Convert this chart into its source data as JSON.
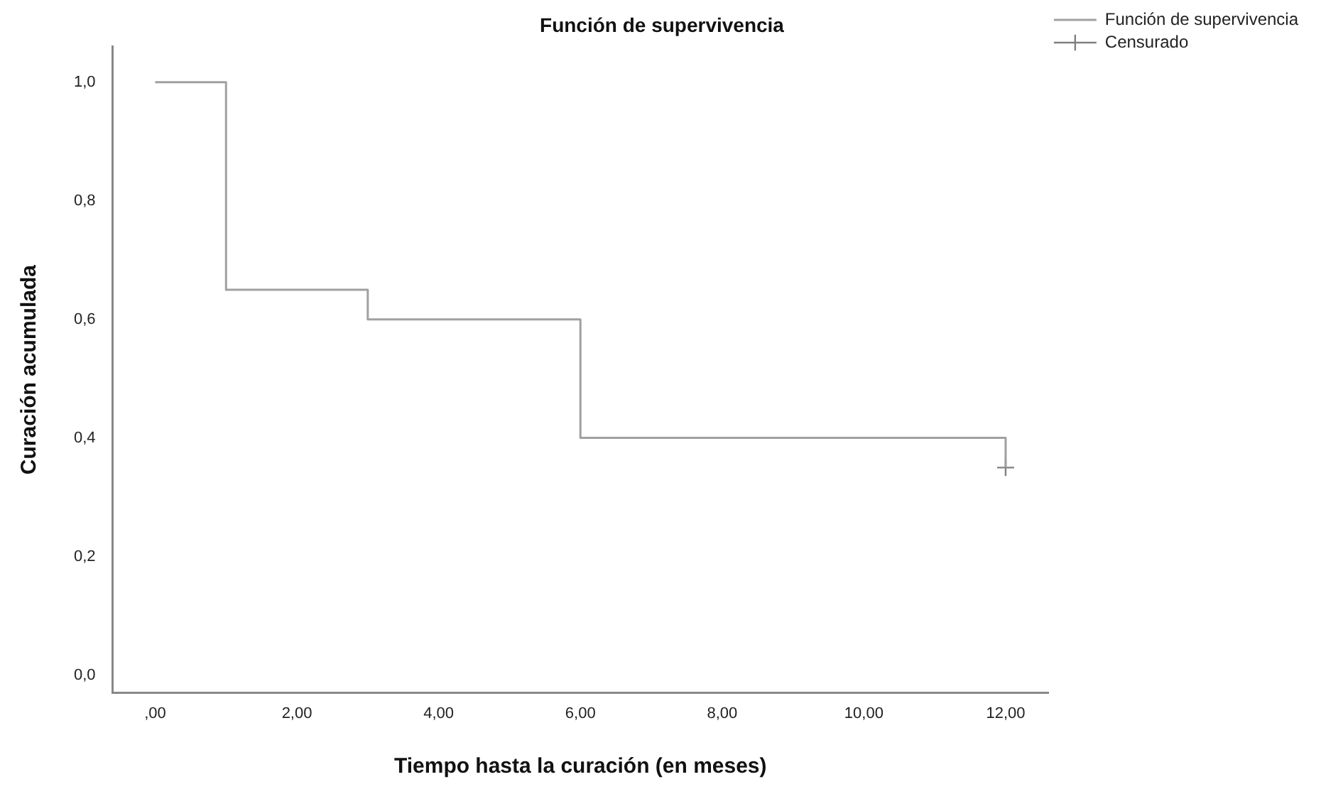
{
  "chart_data": {
    "type": "step",
    "title": "Función de supervivencia",
    "xlabel": "Tiempo hasta la curación (en meses)",
    "ylabel": "Curación acumulada",
    "xlim": [
      -0.6,
      12.6
    ],
    "ylim": [
      -0.03,
      1.06
    ],
    "xticks": [
      {
        "value": 0,
        "label": ",00"
      },
      {
        "value": 2,
        "label": "2,00"
      },
      {
        "value": 4,
        "label": "4,00"
      },
      {
        "value": 6,
        "label": "6,00"
      },
      {
        "value": 8,
        "label": "8,00"
      },
      {
        "value": 10,
        "label": "10,00"
      },
      {
        "value": 12,
        "label": "12,00"
      }
    ],
    "yticks": [
      {
        "value": 0,
        "label": "0,0"
      },
      {
        "value": 0.2,
        "label": "0,2"
      },
      {
        "value": 0.4,
        "label": "0,4"
      },
      {
        "value": 0.6,
        "label": "0,6"
      },
      {
        "value": 0.8,
        "label": "0,8"
      },
      {
        "value": 1,
        "label": "1,0"
      }
    ],
    "grid": false,
    "legend": "top right",
    "series": [
      {
        "name": "Función de supervivencia",
        "type": "step",
        "color": "#a0a0a0",
        "x": [
          0,
          1,
          3,
          6,
          12
        ],
        "values": [
          1,
          0.65,
          0.6,
          0.4,
          0.35
        ],
        "marker": "none"
      },
      {
        "name": "Censurado",
        "type": "scatter",
        "color": "#808080",
        "x": [
          12
        ],
        "values": [
          0.35
        ],
        "marker": "cross"
      }
    ]
  }
}
